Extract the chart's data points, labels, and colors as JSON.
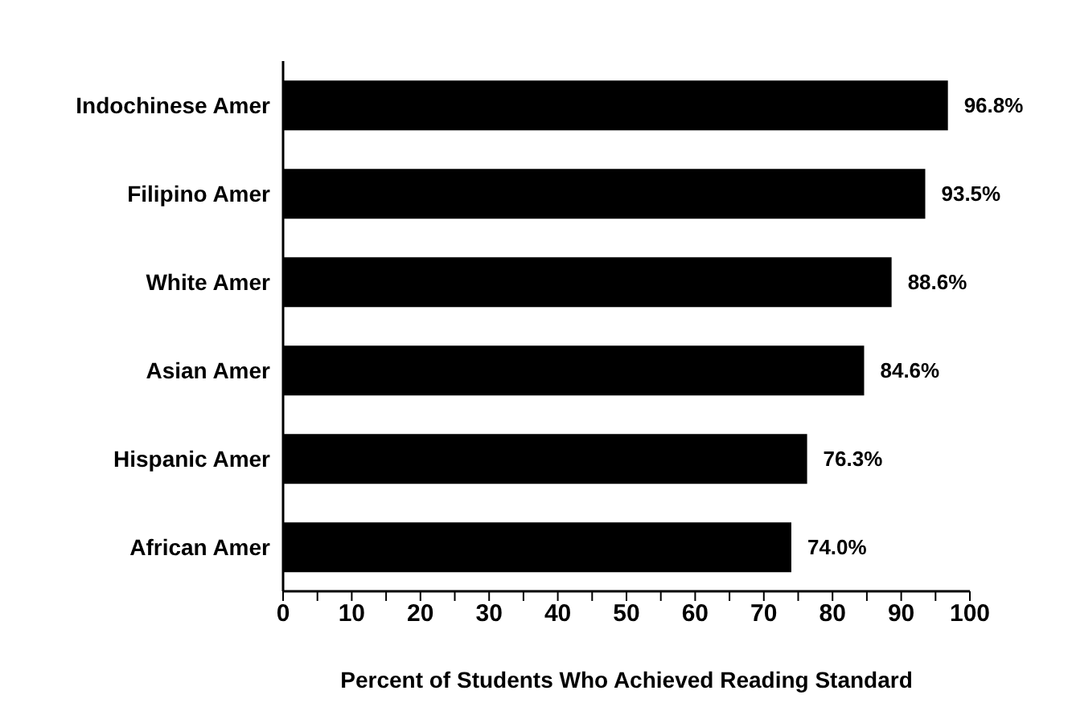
{
  "chart_data": {
    "type": "bar",
    "orientation": "horizontal",
    "xlabel": "Percent of Students Who Achieved Reading Standard",
    "categories": [
      "Indochinese Amer",
      "Filipino Amer",
      "White Amer",
      "Asian Amer",
      "Hispanic  Amer",
      "African Amer"
    ],
    "values": [
      96.8,
      93.5,
      88.6,
      84.6,
      76.3,
      74.0
    ],
    "value_labels": [
      "96.8%",
      "93.5%",
      "88.6%",
      "84.6%",
      "76.3%",
      "74.0%"
    ],
    "color": "#000000",
    "xlim": [
      0,
      100
    ],
    "xticks": [
      0,
      {
        "value": 5,
        "label": null
      },
      10,
      {
        "value": 15,
        "label": null
      },
      20,
      {
        "value": 25,
        "label": null
      },
      30,
      {
        "value": 35,
        "label": null
      },
      40,
      {
        "value": 45,
        "label": null
      },
      50,
      {
        "value": 55,
        "label": null
      },
      60,
      {
        "value": 65,
        "label": null
      },
      70,
      {
        "value": 75,
        "label": null
      },
      80,
      {
        "value": 85,
        "label": null
      },
      90,
      {
        "value": 95,
        "label": null
      },
      100
    ],
    "grid": false,
    "legend": false
  }
}
